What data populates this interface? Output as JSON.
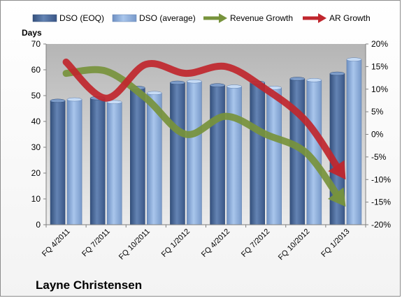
{
  "company": "Layne Christensen",
  "chart_data": {
    "type": "bar",
    "categories": [
      "FQ 4/2011",
      "FQ 7/2011",
      "FQ 10/2011",
      "FQ 1/2012",
      "FQ 4/2012",
      "FQ 7/2012",
      "FQ 10/2012",
      "FQ 1/2013"
    ],
    "ylabel": "Days",
    "ylim": [
      0,
      70
    ],
    "y_ticks": [
      "0",
      "10",
      "20",
      "30",
      "40",
      "50",
      "60",
      "70"
    ],
    "y2lim": [
      -20,
      20
    ],
    "y2_ticks": [
      "-20%",
      "-15%",
      "-10%",
      "-5%",
      "0%",
      "5%",
      "10%",
      "15%",
      "20%"
    ],
    "grid": false,
    "legend_position": "top",
    "series": [
      {
        "name": "DSO (EOQ)",
        "kind": "bar",
        "axis": "left",
        "color": "#4f6f9f",
        "values": [
          48,
          49,
          53,
          55,
          54,
          55,
          56.5,
          58.5
        ]
      },
      {
        "name": "DSO (average)",
        "kind": "bar",
        "axis": "left",
        "color": "#8fb0de",
        "values": [
          48.5,
          47.5,
          51,
          55.5,
          53.5,
          53,
          56,
          64
        ]
      },
      {
        "name": "Revenue Growth",
        "kind": "arrow-line",
        "axis": "right",
        "color": "#77933c",
        "values": [
          13.5,
          14,
          8,
          0,
          4,
          0,
          -4,
          -16
        ]
      },
      {
        "name": "AR Growth",
        "kind": "arrow-line",
        "axis": "right",
        "color": "#c0262d",
        "values": [
          16,
          8,
          15.5,
          13.5,
          15,
          10,
          3,
          -10
        ]
      }
    ]
  }
}
